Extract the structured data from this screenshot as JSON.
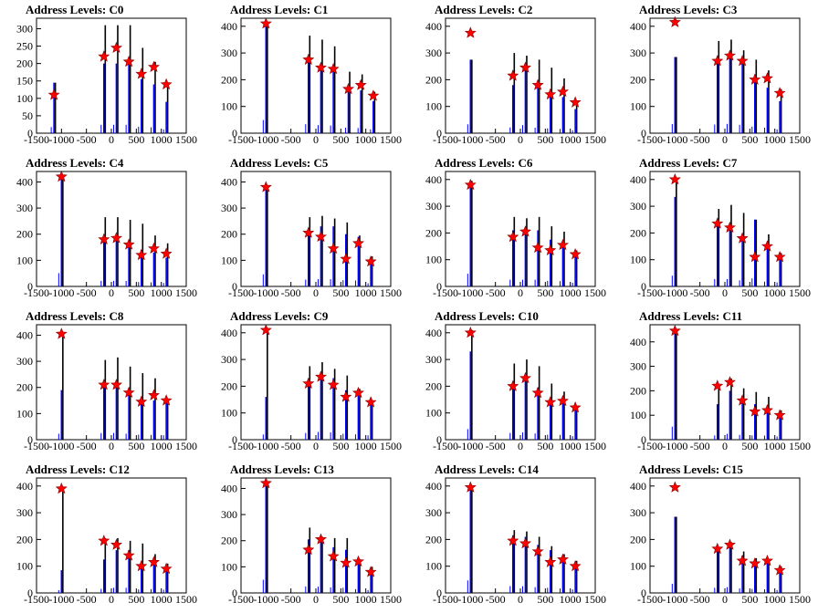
{
  "x_axis": {
    "ticks": [
      -1500,
      -1000,
      -500,
      0,
      500,
      1000,
      1500
    ],
    "tick_labels": [
      "-1500",
      "-1000",
      "-500",
      "0",
      "500",
      "1000",
      "1500"
    ],
    "range": [
      -1500,
      1500
    ]
  },
  "colors": {
    "histogram_total": "#000000",
    "histogram_selected": "#0000ff",
    "peak_marker": "#ff0000",
    "marker_outline": "#8b0000"
  },
  "chart_data": [
    {
      "type": "bar",
      "title": "Address Levels: C0",
      "ylim": [
        0,
        330
      ],
      "yticks": [
        0,
        50,
        100,
        150,
        200,
        250,
        300
      ],
      "peaks": [
        {
          "x": -1150,
          "total": 145,
          "selected": 145,
          "marker": 110
        },
        {
          "x": -150,
          "total": 310,
          "selected": 200,
          "marker": 220
        },
        {
          "x": 100,
          "total": 310,
          "selected": 200,
          "marker": 245
        },
        {
          "x": 350,
          "total": 310,
          "selected": 200,
          "marker": 205
        },
        {
          "x": 600,
          "total": 245,
          "selected": 155,
          "marker": 170
        },
        {
          "x": 850,
          "total": 205,
          "selected": 140,
          "marker": 190
        },
        {
          "x": 1100,
          "total": 140,
          "selected": 90,
          "marker": 140
        }
      ]
    },
    {
      "type": "bar",
      "title": "Address Levels: C1",
      "ylim": [
        0,
        430
      ],
      "yticks": [
        0,
        100,
        200,
        300,
        400
      ],
      "peaks": [
        {
          "x": -1000,
          "total": 410,
          "selected": 410,
          "marker": 410
        },
        {
          "x": -150,
          "total": 365,
          "selected": 280,
          "marker": 275
        },
        {
          "x": 100,
          "total": 350,
          "selected": 250,
          "marker": 245
        },
        {
          "x": 350,
          "total": 325,
          "selected": 240,
          "marker": 240
        },
        {
          "x": 650,
          "total": 230,
          "selected": 170,
          "marker": 165
        },
        {
          "x": 900,
          "total": 220,
          "selected": 160,
          "marker": 180
        },
        {
          "x": 1150,
          "total": 155,
          "selected": 120,
          "marker": 140
        }
      ]
    },
    {
      "type": "bar",
      "title": "Address Levels: C2",
      "ylim": [
        0,
        430
      ],
      "yticks": [
        0,
        100,
        200,
        300,
        400
      ],
      "peaks": [
        {
          "x": -1000,
          "total": 275,
          "selected": 275,
          "marker": 375
        },
        {
          "x": -150,
          "total": 300,
          "selected": 180,
          "marker": 215
        },
        {
          "x": 100,
          "total": 290,
          "selected": 250,
          "marker": 245
        },
        {
          "x": 350,
          "total": 275,
          "selected": 170,
          "marker": 180
        },
        {
          "x": 600,
          "total": 245,
          "selected": 150,
          "marker": 145
        },
        {
          "x": 850,
          "total": 205,
          "selected": 135,
          "marker": 155
        },
        {
          "x": 1100,
          "total": 120,
          "selected": 90,
          "marker": 115
        }
      ]
    },
    {
      "type": "bar",
      "title": "Address Levels: C3",
      "ylim": [
        0,
        430
      ],
      "yticks": [
        0,
        100,
        200,
        300,
        400
      ],
      "peaks": [
        {
          "x": -1000,
          "total": 285,
          "selected": 285,
          "marker": 415
        },
        {
          "x": -150,
          "total": 345,
          "selected": 270,
          "marker": 270
        },
        {
          "x": 100,
          "total": 350,
          "selected": 290,
          "marker": 290
        },
        {
          "x": 350,
          "total": 310,
          "selected": 260,
          "marker": 270
        },
        {
          "x": 600,
          "total": 275,
          "selected": 205,
          "marker": 200
        },
        {
          "x": 850,
          "total": 235,
          "selected": 170,
          "marker": 205
        },
        {
          "x": 1100,
          "total": 165,
          "selected": 120,
          "marker": 150
        }
      ]
    },
    {
      "type": "bar",
      "title": "Address Levels: C4",
      "ylim": [
        0,
        440
      ],
      "yticks": [
        0,
        100,
        200,
        300,
        400
      ],
      "peaks": [
        {
          "x": -1000,
          "total": 425,
          "selected": 425,
          "marker": 420
        },
        {
          "x": -150,
          "total": 265,
          "selected": 180,
          "marker": 180
        },
        {
          "x": 100,
          "total": 265,
          "selected": 180,
          "marker": 185
        },
        {
          "x": 350,
          "total": 255,
          "selected": 175,
          "marker": 160
        },
        {
          "x": 600,
          "total": 240,
          "selected": 140,
          "marker": 120
        },
        {
          "x": 850,
          "total": 195,
          "selected": 130,
          "marker": 145
        },
        {
          "x": 1100,
          "total": 165,
          "selected": 110,
          "marker": 125
        }
      ]
    },
    {
      "type": "bar",
      "title": "Address Levels: C5",
      "ylim": [
        0,
        440
      ],
      "yticks": [
        0,
        100,
        200,
        300,
        400
      ],
      "peaks": [
        {
          "x": -1000,
          "total": 385,
          "selected": 385,
          "marker": 380
        },
        {
          "x": -150,
          "total": 265,
          "selected": 220,
          "marker": 205
        },
        {
          "x": 100,
          "total": 270,
          "selected": 230,
          "marker": 190
        },
        {
          "x": 350,
          "total": 260,
          "selected": 230,
          "marker": 145
        },
        {
          "x": 600,
          "total": 245,
          "selected": 200,
          "marker": 105
        },
        {
          "x": 850,
          "total": 195,
          "selected": 190,
          "marker": 165
        },
        {
          "x": 1100,
          "total": 115,
          "selected": 100,
          "marker": 95
        }
      ]
    },
    {
      "type": "bar",
      "title": "Address Levels: C6",
      "ylim": [
        0,
        430
      ],
      "yticks": [
        0,
        100,
        200,
        300,
        400
      ],
      "peaks": [
        {
          "x": -1000,
          "total": 395,
          "selected": 395,
          "marker": 380
        },
        {
          "x": -150,
          "total": 260,
          "selected": 210,
          "marker": 185
        },
        {
          "x": 100,
          "total": 255,
          "selected": 210,
          "marker": 205
        },
        {
          "x": 350,
          "total": 260,
          "selected": 210,
          "marker": 145
        },
        {
          "x": 600,
          "total": 225,
          "selected": 175,
          "marker": 135
        },
        {
          "x": 850,
          "total": 205,
          "selected": 165,
          "marker": 155
        },
        {
          "x": 1100,
          "total": 135,
          "selected": 115,
          "marker": 120
        }
      ]
    },
    {
      "type": "bar",
      "title": "Address Levels: C7",
      "ylim": [
        0,
        430
      ],
      "yticks": [
        0,
        100,
        200,
        300,
        400
      ],
      "peaks": [
        {
          "x": -1000,
          "total": 405,
          "selected": 335,
          "marker": 400
        },
        {
          "x": -150,
          "total": 290,
          "selected": 230,
          "marker": 235
        },
        {
          "x": 100,
          "total": 305,
          "selected": 230,
          "marker": 220
        },
        {
          "x": 350,
          "total": 275,
          "selected": 190,
          "marker": 180
        },
        {
          "x": 600,
          "total": 250,
          "selected": 250,
          "marker": 110
        },
        {
          "x": 850,
          "total": 195,
          "selected": 150,
          "marker": 150
        },
        {
          "x": 1100,
          "total": 125,
          "selected": 125,
          "marker": 110
        }
      ]
    },
    {
      "type": "bar",
      "title": "Address Levels: C8",
      "ylim": [
        0,
        440
      ],
      "yticks": [
        0,
        100,
        200,
        300,
        400
      ],
      "peaks": [
        {
          "x": -1000,
          "total": 410,
          "selected": 190,
          "marker": 405
        },
        {
          "x": -150,
          "total": 305,
          "selected": 210,
          "marker": 210
        },
        {
          "x": 100,
          "total": 315,
          "selected": 215,
          "marker": 210
        },
        {
          "x": 350,
          "total": 280,
          "selected": 190,
          "marker": 180
        },
        {
          "x": 600,
          "total": 255,
          "selected": 160,
          "marker": 145
        },
        {
          "x": 850,
          "total": 235,
          "selected": 150,
          "marker": 170
        },
        {
          "x": 1100,
          "total": 155,
          "selected": 140,
          "marker": 150
        }
      ]
    },
    {
      "type": "bar",
      "title": "Address Levels: C9",
      "ylim": [
        0,
        430
      ],
      "yticks": [
        0,
        100,
        200,
        300,
        400
      ],
      "peaks": [
        {
          "x": -1000,
          "total": 400,
          "selected": 160,
          "marker": 410
        },
        {
          "x": -150,
          "total": 275,
          "selected": 210,
          "marker": 210
        },
        {
          "x": 100,
          "total": 290,
          "selected": 240,
          "marker": 235
        },
        {
          "x": 350,
          "total": 265,
          "selected": 230,
          "marker": 205
        },
        {
          "x": 600,
          "total": 240,
          "selected": 185,
          "marker": 160
        },
        {
          "x": 850,
          "total": 190,
          "selected": 165,
          "marker": 175
        },
        {
          "x": 1100,
          "total": 135,
          "selected": 135,
          "marker": 140
        }
      ]
    },
    {
      "type": "bar",
      "title": "Address Levels: C10",
      "ylim": [
        0,
        430
      ],
      "yticks": [
        0,
        100,
        200,
        300,
        400
      ],
      "peaks": [
        {
          "x": -1000,
          "total": 410,
          "selected": 330,
          "marker": 400
        },
        {
          "x": -150,
          "total": 285,
          "selected": 210,
          "marker": 200
        },
        {
          "x": 100,
          "total": 300,
          "selected": 225,
          "marker": 230
        },
        {
          "x": 350,
          "total": 275,
          "selected": 195,
          "marker": 175
        },
        {
          "x": 600,
          "total": 210,
          "selected": 155,
          "marker": 140
        },
        {
          "x": 850,
          "total": 180,
          "selected": 150,
          "marker": 145
        },
        {
          "x": 1100,
          "total": 125,
          "selected": 110,
          "marker": 120
        }
      ]
    },
    {
      "type": "bar",
      "title": "Address Levels: C11",
      "ylim": [
        0,
        470
      ],
      "yticks": [
        0,
        100,
        200,
        300,
        400
      ],
      "peaks": [
        {
          "x": -1000,
          "total": 445,
          "selected": 445,
          "marker": 445
        },
        {
          "x": -150,
          "total": 215,
          "selected": 145,
          "marker": 220
        },
        {
          "x": 100,
          "total": 250,
          "selected": 200,
          "marker": 235
        },
        {
          "x": 350,
          "total": 210,
          "selected": 165,
          "marker": 160
        },
        {
          "x": 600,
          "total": 195,
          "selected": 145,
          "marker": 115
        },
        {
          "x": 850,
          "total": 175,
          "selected": 140,
          "marker": 120
        },
        {
          "x": 1100,
          "total": 120,
          "selected": 110,
          "marker": 100
        }
      ]
    },
    {
      "type": "bar",
      "title": "Address Levels: C12",
      "ylim": [
        0,
        430
      ],
      "yticks": [
        0,
        100,
        200,
        300,
        400
      ],
      "peaks": [
        {
          "x": -1000,
          "total": 390,
          "selected": 85,
          "marker": 390
        },
        {
          "x": -150,
          "total": 205,
          "selected": 125,
          "marker": 195
        },
        {
          "x": 100,
          "total": 205,
          "selected": 160,
          "marker": 180
        },
        {
          "x": 350,
          "total": 195,
          "selected": 160,
          "marker": 140
        },
        {
          "x": 600,
          "total": 185,
          "selected": 110,
          "marker": 100
        },
        {
          "x": 850,
          "total": 145,
          "selected": 120,
          "marker": 115
        },
        {
          "x": 1100,
          "total": 110,
          "selected": 100,
          "marker": 90
        }
      ]
    },
    {
      "type": "bar",
      "title": "Address Levels: C13",
      "ylim": [
        0,
        440
      ],
      "yticks": [
        0,
        100,
        200,
        300,
        400
      ],
      "peaks": [
        {
          "x": -1000,
          "total": 420,
          "selected": 420,
          "marker": 420
        },
        {
          "x": -150,
          "total": 250,
          "selected": 205,
          "marker": 165
        },
        {
          "x": 100,
          "total": 215,
          "selected": 200,
          "marker": 205
        },
        {
          "x": 350,
          "total": 210,
          "selected": 175,
          "marker": 140
        },
        {
          "x": 600,
          "total": 210,
          "selected": 165,
          "marker": 115
        },
        {
          "x": 850,
          "total": 130,
          "selected": 120,
          "marker": 120
        },
        {
          "x": 1100,
          "total": 100,
          "selected": 90,
          "marker": 80
        }
      ]
    },
    {
      "type": "bar",
      "title": "Address Levels: C14",
      "ylim": [
        0,
        430
      ],
      "yticks": [
        0,
        100,
        200,
        300,
        400
      ],
      "peaks": [
        {
          "x": -1000,
          "total": 390,
          "selected": 390,
          "marker": 395
        },
        {
          "x": -150,
          "total": 235,
          "selected": 215,
          "marker": 195
        },
        {
          "x": 100,
          "total": 230,
          "selected": 210,
          "marker": 185
        },
        {
          "x": 350,
          "total": 210,
          "selected": 180,
          "marker": 155
        },
        {
          "x": 600,
          "total": 175,
          "selected": 160,
          "marker": 115
        },
        {
          "x": 850,
          "total": 145,
          "selected": 140,
          "marker": 125
        },
        {
          "x": 1100,
          "total": 120,
          "selected": 110,
          "marker": 100
        }
      ]
    },
    {
      "type": "bar",
      "title": "Address Levels: C15",
      "ylim": [
        0,
        430
      ],
      "yticks": [
        0,
        100,
        200,
        300,
        400
      ],
      "peaks": [
        {
          "x": -1000,
          "total": 285,
          "selected": 285,
          "marker": 395
        },
        {
          "x": -150,
          "total": 170,
          "selected": 160,
          "marker": 165
        },
        {
          "x": 100,
          "total": 190,
          "selected": 180,
          "marker": 180
        },
        {
          "x": 350,
          "total": 155,
          "selected": 140,
          "marker": 120
        },
        {
          "x": 600,
          "total": 130,
          "selected": 125,
          "marker": 110
        },
        {
          "x": 850,
          "total": 120,
          "selected": 115,
          "marker": 120
        },
        {
          "x": 1100,
          "total": 100,
          "selected": 90,
          "marker": 85
        }
      ]
    }
  ]
}
